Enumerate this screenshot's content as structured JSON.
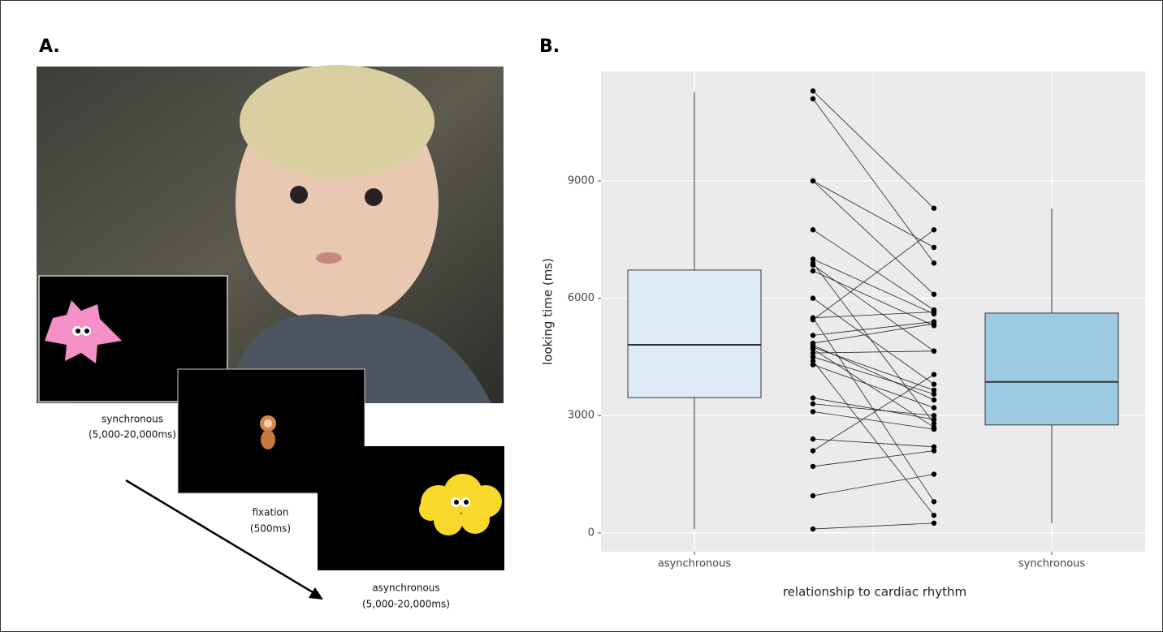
{
  "panel_a": {
    "label": "A.",
    "captions": [
      {
        "line1": "synchronous",
        "line2": "(5,000-20,000ms)"
      },
      {
        "line1": "fixation",
        "line2": "(500ms)"
      },
      {
        "line1": "asynchronous",
        "line2": "(5,000-20,000ms)"
      }
    ]
  },
  "chart_data": {
    "type": "box",
    "panel_label": "B.",
    "y_label": "looking time (ms)",
    "x_label": "relationship to cardiac rhythm",
    "categories": [
      "asynchronous",
      "synchronous"
    ],
    "boxes": [
      {
        "whisker_low": 100,
        "q1": 3460,
        "median": 4810,
        "q3": 6720,
        "whisker_high": 11280,
        "color": "#deebf7"
      },
      {
        "whisker_low": 250,
        "q1": 2760,
        "median": 3860,
        "q3": 5620,
        "whisker_high": 8290,
        "color": "#9ecae1"
      }
    ],
    "paired_points": [
      [
        11300,
        8300
      ],
      [
        11100,
        6900
      ],
      [
        9000,
        7300
      ],
      [
        9000,
        6100
      ],
      [
        7750,
        5700
      ],
      [
        7000,
        5600
      ],
      [
        6850,
        4650
      ],
      [
        6700,
        5300
      ],
      [
        6000,
        3800
      ],
      [
        5500,
        5650
      ],
      [
        5450,
        7750
      ],
      [
        5050,
        5400
      ],
      [
        4800,
        3400
      ],
      [
        4750,
        3650
      ],
      [
        4700,
        2700
      ],
      [
        4600,
        4650
      ],
      [
        4500,
        3550
      ],
      [
        4300,
        3200
      ],
      [
        3450,
        2900
      ],
      [
        3300,
        3000
      ],
      [
        3100,
        2650
      ],
      [
        2400,
        2200
      ],
      [
        2100,
        4050
      ],
      [
        1700,
        2100
      ],
      [
        950,
        1500
      ],
      [
        100,
        250
      ],
      [
        4850,
        5350
      ],
      [
        5500,
        800
      ],
      [
        4400,
        450
      ],
      [
        6900,
        2800
      ]
    ],
    "ylim": [
      -480,
      11800
    ],
    "yticks": [
      0,
      3000,
      6000,
      9000
    ],
    "grid": true,
    "panel_color": "#ebebeb",
    "point_color": "#000000"
  }
}
